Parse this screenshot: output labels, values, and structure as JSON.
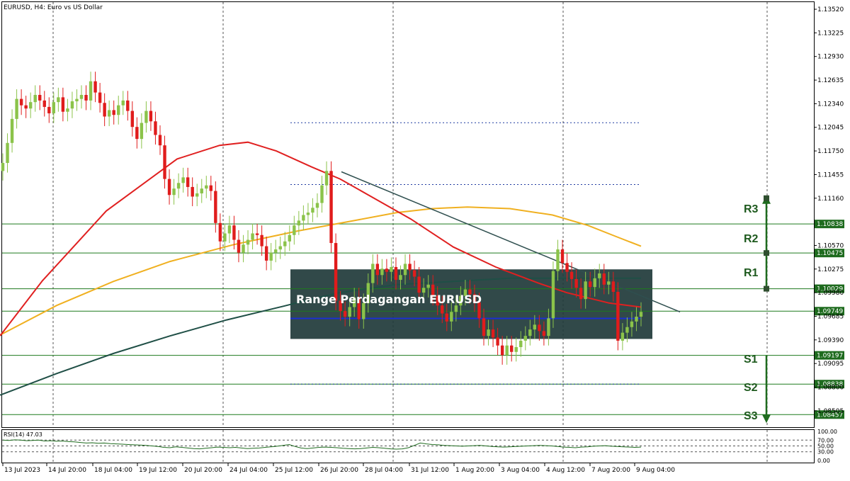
{
  "title": "EURUSD, H4:  Euro vs US Dollar",
  "range_label": "Range Perdagangan EURUSD",
  "rsi_label": "RSI(14) 47.03",
  "colors": {
    "bull": "#8bc34a",
    "bear": "#e01c1c",
    "ma_fast": "#e02020",
    "ma_mid": "#f0b020",
    "ma_slow": "#1f4f46",
    "level_line": "#1e7a1e",
    "range_box": "#1f3a3a",
    "trendline": "#2f4f4f",
    "support_fill": "#1e6b1e",
    "arrow": "#1e6b1e"
  },
  "chart_data": {
    "type": "candlestick",
    "symbol": "EURUSD",
    "timeframe": "H4",
    "ylim": [
      1.083,
      1.136
    ],
    "price_ticks": [
      "1.13520",
      "1.13225",
      "1.12930",
      "1.12635",
      "1.12340",
      "1.12045",
      "1.11750",
      "1.11455",
      "1.11160",
      "1.10570",
      "1.10275",
      "1.09980",
      "1.09685",
      "1.09390",
      "1.09095",
      "1.08800",
      "1.08505"
    ],
    "price_ticks_values": [
      1.1352,
      1.13225,
      1.1293,
      1.12635,
      1.1234,
      1.12045,
      1.1175,
      1.11455,
      1.1116,
      1.1057,
      1.10275,
      1.0998,
      1.09685,
      1.0939,
      1.09095,
      1.088,
      1.08505
    ],
    "time_labels": [
      "13 Jul 2023",
      "14 Jul 20:00",
      "18 Jul 04:00",
      "19 Jul 12:00",
      "20 Jul 20:00",
      "24 Jul 04:00",
      "25 Jul 12:00",
      "26 Jul 20:00",
      "28 Jul 04:00",
      "31 Jul 12:00",
      "1 Aug 20:00",
      "3 Aug 04:00",
      "4 Aug 12:00",
      "7 Aug 20:00",
      "9 Aug 04:00"
    ],
    "levels": [
      {
        "name": "R3",
        "price": 1.10838,
        "tag": "1.10838"
      },
      {
        "name": "R2",
        "price": 1.10475,
        "tag": "1.10475"
      },
      {
        "name": "R1",
        "price": 1.10029,
        "tag": "1.10029"
      },
      {
        "name": "",
        "price": 1.09749,
        "tag": "1.09749"
      },
      {
        "name": "S1",
        "price": 1.09197,
        "tag": "1.09197"
      },
      {
        "name": "S2",
        "price": 1.08838,
        "tag": "1.08838"
      },
      {
        "name": "S3",
        "price": 1.08457,
        "tag": "1.08457"
      }
    ],
    "closes": [
      1.116,
      1.1185,
      1.1215,
      1.124,
      1.1232,
      1.1228,
      1.1236,
      1.1245,
      1.1238,
      1.123,
      1.1222,
      1.1236,
      1.1242,
      1.1224,
      1.1228,
      1.1237,
      1.124,
      1.1245,
      1.1238,
      1.1262,
      1.1248,
      1.1235,
      1.1218,
      1.1226,
      1.122,
      1.1232,
      1.1238,
      1.1225,
      1.1205,
      1.119,
      1.121,
      1.1225,
      1.1212,
      1.1195,
      1.1182,
      1.114,
      1.112,
      1.1128,
      1.1135,
      1.1142,
      1.113,
      1.1118,
      1.1122,
      1.1128,
      1.1132,
      1.1125,
      1.1085,
      1.1062,
      1.1072,
      1.1082,
      1.1064,
      1.1048,
      1.1058,
      1.1064,
      1.1072,
      1.107,
      1.1056,
      1.1038,
      1.1048,
      1.1052,
      1.1056,
      1.1062,
      1.107,
      1.1082,
      1.1088,
      1.1095,
      1.1098,
      1.1104,
      1.111,
      1.1132,
      1.115,
      1.106,
      1.0988,
      1.0975,
      1.0968,
      1.098,
      1.0992,
      1.0965,
      1.0985,
      1.101,
      1.1034,
      1.102,
      1.1028,
      1.1024,
      1.103,
      1.1014,
      1.102,
      1.1034,
      1.1026,
      1.1018,
      1.0998,
      1.1004,
      1.1008,
      1.0994,
      1.0982,
      1.0972,
      1.0962,
      1.0974,
      1.0982,
      1.0994,
      1.1002,
      1.0996,
      1.0986,
      1.0966,
      1.0944,
      1.0952,
      1.0942,
      1.0932,
      1.092,
      1.0932,
      1.0924,
      1.093,
      1.0938,
      1.0944,
      1.0952,
      1.0958,
      1.095,
      1.0944,
      1.0966,
      1.1025,
      1.1052,
      1.1035,
      1.1024,
      1.1015,
      1.1004,
      1.099,
      1.1012,
      1.1005,
      1.1016,
      1.1022,
      1.1008,
      1.1012,
      1.0999,
      1.0938,
      1.0948,
      1.0955,
      1.0962,
      1.0968,
      1.0974
    ],
    "ma_fast": [
      [
        0,
        1.0944
      ],
      [
        60,
        1.1013
      ],
      [
        150,
        1.11
      ],
      [
        250,
        1.1165
      ],
      [
        310,
        1.1182
      ],
      [
        350,
        1.1186
      ],
      [
        390,
        1.1175
      ],
      [
        440,
        1.1155
      ],
      [
        480,
        1.114
      ],
      [
        520,
        1.112
      ],
      [
        580,
        1.109
      ],
      [
        640,
        1.1055
      ],
      [
        700,
        1.103
      ],
      [
        760,
        1.101
      ],
      [
        800,
        1.0998
      ],
      [
        860,
        1.0985
      ],
      [
        905,
        1.098
      ]
    ],
    "ma_mid": [
      [
        0,
        1.0945
      ],
      [
        80,
        1.0982
      ],
      [
        160,
        1.1012
      ],
      [
        240,
        1.1037
      ],
      [
        330,
        1.1058
      ],
      [
        420,
        1.1075
      ],
      [
        500,
        1.1088
      ],
      [
        560,
        1.1098
      ],
      [
        610,
        1.1103
      ],
      [
        660,
        1.1105
      ],
      [
        720,
        1.1103
      ],
      [
        780,
        1.1095
      ],
      [
        830,
        1.1082
      ],
      [
        870,
        1.1068
      ],
      [
        905,
        1.1056
      ]
    ],
    "ma_slow": [
      [
        0,
        1.087
      ],
      [
        80,
        1.0897
      ],
      [
        160,
        1.0922
      ],
      [
        240,
        1.0944
      ],
      [
        320,
        1.0964
      ],
      [
        400,
        1.0981
      ],
      [
        440,
        1.099
      ],
      [
        480,
        1.0998
      ],
      [
        560,
        1.1008
      ],
      [
        640,
        1.1012
      ],
      [
        720,
        1.1016
      ],
      [
        800,
        1.1016
      ],
      [
        860,
        1.1016
      ],
      [
        905,
        1.1016
      ]
    ],
    "trendline": [
      [
        482,
        1.1149
      ],
      [
        960,
        1.0974
      ]
    ],
    "range_box": {
      "x_start": 410,
      "x_end": 921,
      "top": 1.10271,
      "bottom": 1.09402
    },
    "dotted_levels": [
      {
        "price": 1.12102,
        "x_start": 410,
        "x_end": 905
      },
      {
        "price": 1.1133,
        "x_start": 410,
        "x_end": 905
      },
      {
        "price": 1.08838,
        "x_start": 410,
        "x_end": 905
      }
    ],
    "blue_line": {
      "price": 1.09658,
      "x_start": 410,
      "x_end": 905
    },
    "rsi": {
      "label": "RSI(14) 47.03",
      "ticks": [
        "100.00",
        "70.00",
        "50.00",
        "30.00",
        "0.00"
      ],
      "ticks_values": [
        100,
        70,
        50,
        30,
        0
      ],
      "values": [
        70,
        69,
        71,
        70,
        68,
        69,
        70,
        67,
        68,
        66,
        67,
        65,
        64,
        62,
        60,
        61,
        59,
        60,
        58,
        57,
        56,
        55,
        54,
        53,
        52,
        50,
        48,
        45,
        44,
        47,
        45,
        43,
        41,
        40,
        42,
        44,
        46,
        45,
        44,
        45,
        43,
        41,
        42,
        43,
        45,
        47,
        49,
        52,
        55,
        48,
        43,
        41,
        43,
        45,
        46,
        45,
        44,
        42,
        41,
        40,
        41,
        43,
        45,
        44,
        42,
        40,
        39,
        40,
        44,
        52,
        60,
        57,
        55,
        54,
        52,
        51,
        50,
        49,
        50,
        51,
        52,
        50,
        48,
        47,
        46,
        47,
        48,
        49,
        50,
        51,
        52,
        51,
        50,
        48,
        46,
        45,
        44,
        46,
        47,
        49,
        50,
        51,
        49,
        48,
        47,
        46,
        45,
        46
      ]
    }
  }
}
